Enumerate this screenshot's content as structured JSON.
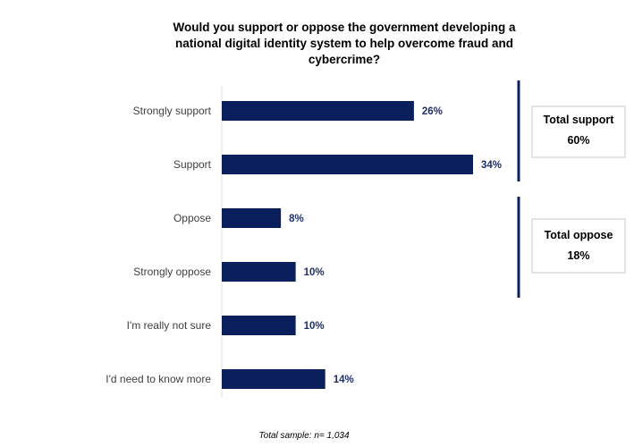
{
  "chart_data": {
    "type": "bar",
    "orientation": "horizontal",
    "title": [
      "Would you support or oppose the government developing a",
      "national digital identity system to help overcome fraud and",
      "cybercrime?"
    ],
    "categories": [
      "Strongly support",
      "Support",
      "Oppose",
      "Strongly oppose",
      "I'm really not sure",
      "I'd need to know more"
    ],
    "values": [
      26,
      34,
      8,
      10,
      10,
      14
    ],
    "value_labels": [
      "26%",
      "34%",
      "8%",
      "10%",
      "10%",
      "14%"
    ],
    "unit": "%",
    "xlim": [
      0,
      34
    ],
    "bar_color": "#0b1f5c",
    "label_color": "#1f2f6b",
    "groups": [
      {
        "title": "Total support",
        "value": "60%",
        "categories": [
          "Strongly support",
          "Support"
        ]
      },
      {
        "title": "Total oppose",
        "value": "18%",
        "categories": [
          "Oppose",
          "Strongly oppose"
        ]
      }
    ],
    "footnote": "Total sample: n= 1,034"
  }
}
